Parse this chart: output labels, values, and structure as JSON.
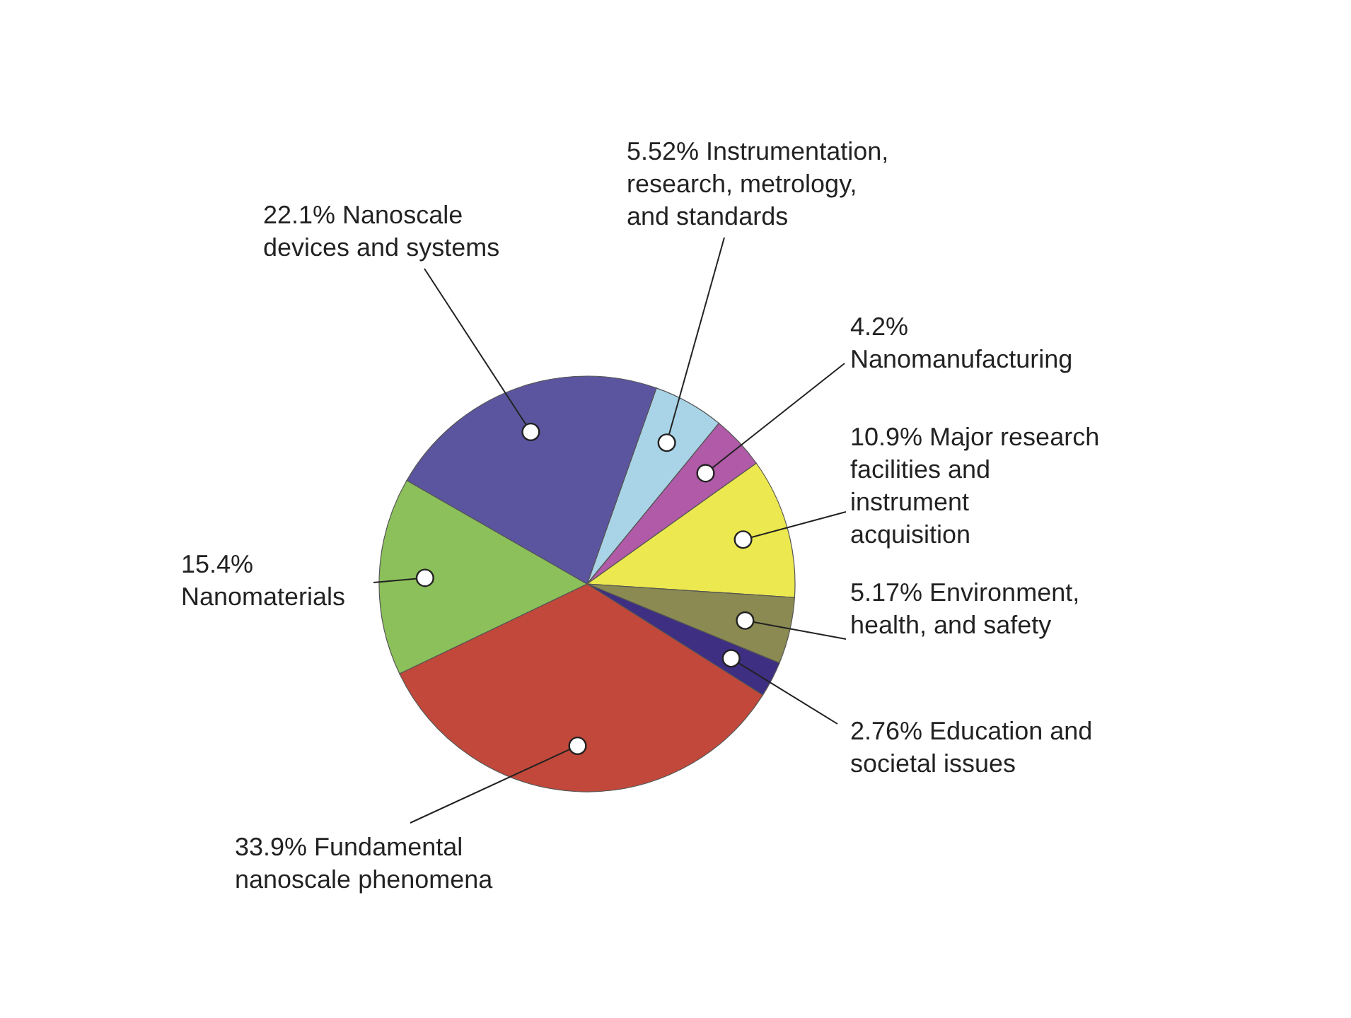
{
  "chart_data": {
    "type": "pie",
    "categories": [
      "Instrumentation, research, metrology, and standards",
      "Nanomanufacturing",
      "Major research facilities and instrument acquisition",
      "Environment, health, and safety",
      "Education and societal issues",
      "Fundamental nanoscale phenomena",
      "Nanomaterials",
      "Nanoscale devices and systems"
    ],
    "values": [
      5.52,
      4.2,
      10.9,
      5.17,
      2.76,
      33.9,
      15.4,
      22.1
    ],
    "value_labels": [
      "5.52%",
      "4.2%",
      "10.9%",
      "5.17%",
      "2.76%",
      "33.9%",
      "15.4%",
      "22.1%"
    ],
    "colors": [
      "#a9d3e6",
      "#b05aa8",
      "#ece84f",
      "#8a8a52",
      "#3e2f82",
      "#c1483a",
      "#8cc05a",
      "#5b55a0"
    ]
  }
}
